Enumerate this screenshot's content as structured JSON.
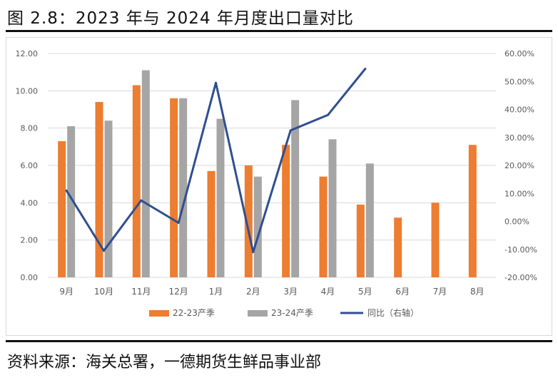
{
  "figure_title": "图 2.8：2023 年与 2024 年月度出口量对比",
  "source_note": "资料来源：海关总署，一德期货生鲜品事业部",
  "colors": {
    "series_2223": "#ED7D31",
    "series_2324": "#A5A5A5",
    "series_yoy": "#2F4F8F",
    "grid": "#D9D9D9",
    "axis_text": "#595959"
  },
  "chart_data": {
    "type": "bar",
    "categories": [
      "9月",
      "10月",
      "11月",
      "12月",
      "1月",
      "2月",
      "3月",
      "4月",
      "5月",
      "6月",
      "7月",
      "8月"
    ],
    "series": [
      {
        "name": "22-23产季",
        "type": "bar",
        "axis": "left",
        "values": [
          7.3,
          9.4,
          10.3,
          9.6,
          5.7,
          6.0,
          7.1,
          5.4,
          3.9,
          3.2,
          4.0,
          7.1
        ]
      },
      {
        "name": "23-24产季",
        "type": "bar",
        "axis": "left",
        "values": [
          8.1,
          8.4,
          11.1,
          9.6,
          8.5,
          5.4,
          9.5,
          7.4,
          6.1,
          null,
          null,
          null
        ]
      },
      {
        "name": "同比（右轴）",
        "type": "line",
        "axis": "right",
        "values": [
          11.0,
          -10.5,
          7.5,
          -0.5,
          49.5,
          -11.0,
          32.5,
          38.0,
          54.5,
          null,
          null,
          null
        ]
      }
    ],
    "y_left": {
      "min": 0,
      "max": 12,
      "step": 2,
      "tick_labels": [
        "0.00",
        "2.00",
        "4.00",
        "6.00",
        "8.00",
        "10.00",
        "12.00"
      ]
    },
    "y_right": {
      "min": -20,
      "max": 60,
      "step": 10,
      "tick_labels": [
        "-20.00%",
        "-10.00%",
        "0.00%",
        "10.00%",
        "20.00%",
        "30.00%",
        "40.00%",
        "50.00%",
        "60.00%"
      ]
    },
    "grid": true,
    "legend_position": "bottom-center"
  }
}
